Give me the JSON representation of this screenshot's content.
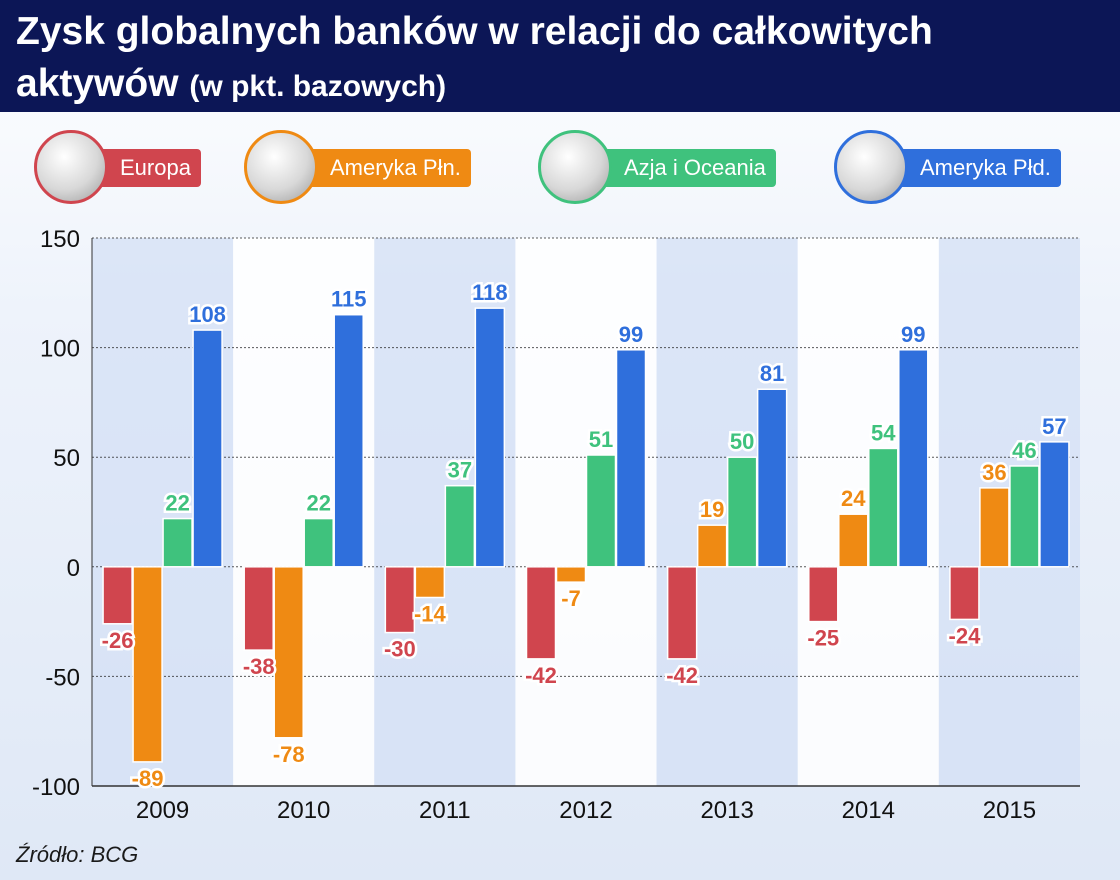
{
  "title": {
    "line1": "Zysk globalnych banków w relacji do całkowitych",
    "line2_main": "aktywów",
    "line2_sub": "(w pkt. bazowych)"
  },
  "legend": [
    {
      "label": "Europa",
      "color": "#d0454e",
      "icon": "globe-europe-icon"
    },
    {
      "label": "Ameryka Płn.",
      "color": "#ef8a13",
      "icon": "globe-north-america-icon"
    },
    {
      "label": "Azja i Oceania",
      "color": "#3fc27d",
      "icon": "globe-asia-oceania-icon"
    },
    {
      "label": "Ameryka Płd.",
      "color": "#2f6fdc",
      "icon": "globe-south-america-icon"
    }
  ],
  "source": "Źródło: BCG",
  "chart_data": {
    "type": "bar",
    "categories": [
      "2009",
      "2010",
      "2011",
      "2012",
      "2013",
      "2014",
      "2015"
    ],
    "series": [
      {
        "name": "Europa",
        "color": "#d0454e",
        "values": [
          -26,
          -38,
          -30,
          -42,
          -42,
          -25,
          -24
        ]
      },
      {
        "name": "Ameryka Płn.",
        "color": "#ef8a13",
        "values": [
          -89,
          -78,
          -14,
          -7,
          19,
          24,
          36
        ]
      },
      {
        "name": "Azja i Oceania",
        "color": "#3fc27d",
        "values": [
          22,
          22,
          37,
          51,
          50,
          54,
          46
        ]
      },
      {
        "name": "Ameryka Płd.",
        "color": "#2f6fdc",
        "values": [
          108,
          115,
          118,
          99,
          81,
          99,
          57
        ]
      }
    ],
    "ylim": [
      -100,
      150
    ],
    "yticks": [
      -100,
      -50,
      0,
      50,
      100,
      150
    ],
    "ytick_labels": [
      "-100",
      "-50",
      "0",
      "50",
      "100",
      "150"
    ],
    "grid": true,
    "legend_position": "top",
    "data_labels": true
  }
}
